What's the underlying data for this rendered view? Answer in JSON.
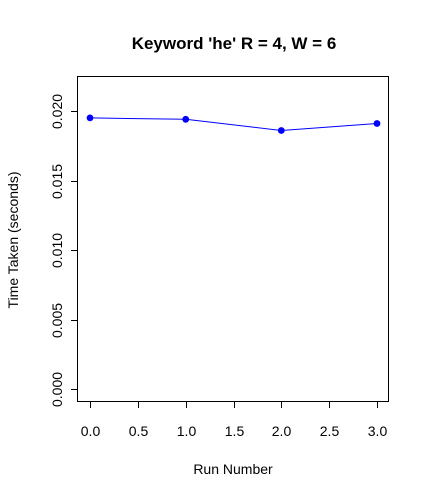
{
  "chart_data": {
    "type": "line",
    "title": "Keyword 'he' R = 4, W = 6",
    "xlabel": "Run Number",
    "ylabel": "Time Taken (seconds)",
    "xlim": [
      0,
      3
    ],
    "ylim": [
      0,
      0.02
    ],
    "x_ticks": [
      "0.0",
      "0.5",
      "1.0",
      "1.5",
      "2.0",
      "2.5",
      "3.0"
    ],
    "y_ticks": [
      "0.000",
      "0.005",
      "0.010",
      "0.015",
      "0.020"
    ],
    "grid": false,
    "series": [
      {
        "x": [
          0,
          1,
          2,
          3
        ],
        "values": [
          0.0195,
          0.0194,
          0.0186,
          0.0191
        ],
        "color": "#0000ff"
      }
    ]
  }
}
